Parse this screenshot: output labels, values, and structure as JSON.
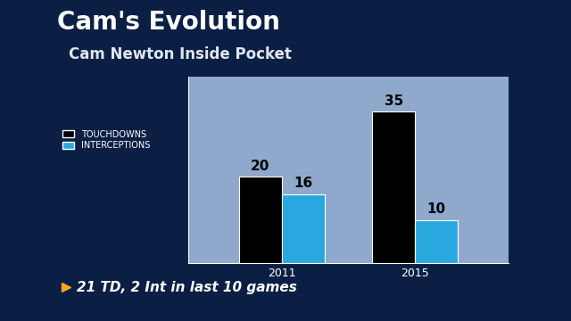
{
  "chart_data": {
    "type": "bar",
    "title": "Cam's Evolution",
    "subtitle": "Cam Newton Inside Pocket",
    "annotations": [
      "21 TD, 2 Int in last 10 games"
    ],
    "categories": [
      "2011",
      "2015"
    ],
    "series": [
      {
        "name": "TOUCHDOWNS",
        "color": "#000000",
        "values": [
          20,
          35
        ]
      },
      {
        "name": "INTERCEPTIONS",
        "color": "#29a8e0",
        "values": [
          16,
          10
        ]
      }
    ],
    "ylim": [
      0,
      43
    ],
    "data_labels": true,
    "tick_labels": "x",
    "legend": "upper left",
    "grid": false
  }
}
